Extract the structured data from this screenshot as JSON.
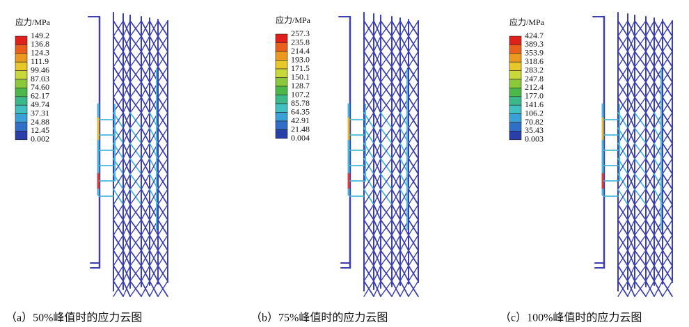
{
  "panels": [
    {
      "legend": {
        "title": "应力/MPa",
        "labels": [
          "149.2",
          "136.8",
          "124.3",
          "111.9",
          "99.46",
          "87.03",
          "74.60",
          "62.17",
          "49.74",
          "37.31",
          "24.88",
          "12.45",
          "0.002"
        ]
      },
      "caption": "（a）50%峰值时的应力云图"
    },
    {
      "legend": {
        "title": "应力/MPa",
        "labels": [
          "257.3",
          "235.8",
          "214.4",
          "193.0",
          "171.5",
          "150.1",
          "128.7",
          "107.2",
          "85.78",
          "64.35",
          "42.91",
          "21.48",
          "0.004"
        ]
      },
      "caption": "（b）75%峰值时的应力云图"
    },
    {
      "legend": {
        "title": "应力/MPa",
        "labels": [
          "424.7",
          "389.3",
          "353.9",
          "318.6",
          "283.2",
          "247.8",
          "212.4",
          "177.0",
          "141.6",
          "106.2",
          "70.82",
          "35.43",
          "0.003"
        ]
      },
      "caption": "（c）100%峰值时的应力云图"
    }
  ]
}
